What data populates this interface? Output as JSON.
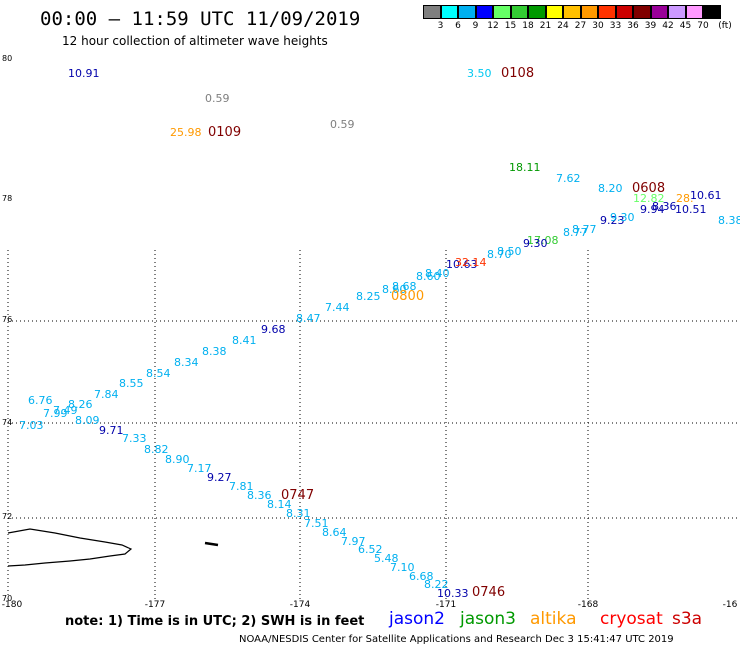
{
  "header": {
    "title": "00:00 – 11:59 UTC 11/09/2019",
    "subtitle": "12 hour collection of altimeter wave heights"
  },
  "legend": {
    "colors": [
      "#7f7f7f",
      "#00ffff",
      "#00b0f0",
      "#0000ff",
      "#66ff66",
      "#33cc33",
      "#009900",
      "#ffff00",
      "#ffc000",
      "#ff9900",
      "#ff3300",
      "#cc0000",
      "#800000",
      "#990099",
      "#cc99ff",
      "#ff99ff",
      "#000000"
    ],
    "labels": [
      "3",
      "6",
      "9",
      "12",
      "15",
      "18",
      "21",
      "24",
      "27",
      "30",
      "33",
      "36",
      "39",
      "42",
      "45",
      "70"
    ],
    "unit": "(ft)"
  },
  "axes": {
    "lat_labels": [
      "80",
      "78",
      "76",
      "74",
      "72",
      "70"
    ],
    "lon_labels": [
      "-180",
      "-177",
      "-174",
      "-171",
      "-168",
      "-16"
    ]
  },
  "values": [
    {
      "t": "10.91",
      "c": "#0000aa"
    },
    {
      "t": "3.50",
      "c": "#00c8f0"
    },
    {
      "t": "0.59",
      "c": "#7f7f7f"
    },
    {
      "t": "25.98",
      "c": "#ff9900"
    },
    {
      "t": "0.59",
      "c": "#7f7f7f"
    },
    {
      "t": "18.11",
      "c": "#009900"
    },
    {
      "t": "7.62",
      "c": "#00b0f0"
    },
    {
      "t": "8.20",
      "c": "#00b0f0"
    },
    {
      "t": "12.82",
      "c": "#66ff66"
    },
    {
      "t": "28.",
      "c": "#ff9900"
    },
    {
      "t": "10.61",
      "c": "#0000aa"
    },
    {
      "t": "9.94",
      "c": "#0000aa"
    },
    {
      "t": "8.36",
      "c": "#0000aa"
    },
    {
      "t": "10.51",
      "c": "#0000aa"
    },
    {
      "t": "8.38",
      "c": "#00b0f0"
    },
    {
      "t": "9.23",
      "c": "#0000aa"
    },
    {
      "t": "9.30",
      "c": "#00b0f0"
    },
    {
      "t": "8.77",
      "c": "#00b0f0"
    },
    {
      "t": "8.77",
      "c": "#00b0f0"
    },
    {
      "t": "17.08",
      "c": "#33cc33"
    },
    {
      "t": "9.30",
      "c": "#0000aa"
    },
    {
      "t": "8.50",
      "c": "#00b0f0"
    },
    {
      "t": "8.70",
      "c": "#00b0f0"
    },
    {
      "t": "10.63",
      "c": "#0000aa"
    },
    {
      "t": "32.14",
      "c": "#ff3300"
    },
    {
      "t": "8.40",
      "c": "#00b0f0"
    },
    {
      "t": "8.60",
      "c": "#00b0f0"
    },
    {
      "t": "8.68",
      "c": "#00b0f0"
    },
    {
      "t": "8.60",
      "c": "#00b0f0"
    },
    {
      "t": "8.25",
      "c": "#00b0f0"
    },
    {
      "t": "7.44",
      "c": "#00b0f0"
    },
    {
      "t": "8.47",
      "c": "#00b0f0"
    },
    {
      "t": "9.68",
      "c": "#0000aa"
    },
    {
      "t": "8.41",
      "c": "#00b0f0"
    },
    {
      "t": "8.38",
      "c": "#00b0f0"
    },
    {
      "t": "8.34",
      "c": "#00b0f0"
    },
    {
      "t": "8.54",
      "c": "#00b0f0"
    },
    {
      "t": "8.55",
      "c": "#00b0f0"
    },
    {
      "t": "7.84",
      "c": "#00b0f0"
    },
    {
      "t": "6.76",
      "c": "#00b0f0"
    },
    {
      "t": "8.26",
      "c": "#00b0f0"
    },
    {
      "t": "7.49",
      "c": "#00b0f0"
    },
    {
      "t": "7.99",
      "c": "#00b0f0"
    },
    {
      "t": "8.09",
      "c": "#00b0f0"
    },
    {
      "t": "7.03",
      "c": "#00b0f0"
    },
    {
      "t": "9.71",
      "c": "#0000aa"
    },
    {
      "t": "7.33",
      "c": "#00b0f0"
    },
    {
      "t": "8.82",
      "c": "#00b0f0"
    },
    {
      "t": "8.90",
      "c": "#00b0f0"
    },
    {
      "t": "7.17",
      "c": "#00b0f0"
    },
    {
      "t": "9.27",
      "c": "#0000aa"
    },
    {
      "t": "7.81",
      "c": "#00b0f0"
    },
    {
      "t": "8.36",
      "c": "#00b0f0"
    },
    {
      "t": "8.14",
      "c": "#00b0f0"
    },
    {
      "t": "8.31",
      "c": "#00b0f0"
    },
    {
      "t": "7.51",
      "c": "#00b0f0"
    },
    {
      "t": "8.64",
      "c": "#00b0f0"
    },
    {
      "t": "7.97",
      "c": "#00b0f0"
    },
    {
      "t": "6.52",
      "c": "#00b0f0"
    },
    {
      "t": "5.48",
      "c": "#00b0f0"
    },
    {
      "t": "7.10",
      "c": "#00b0f0"
    },
    {
      "t": "6.68",
      "c": "#00b0f0"
    },
    {
      "t": "8.22",
      "c": "#00b0f0"
    },
    {
      "t": "10.33",
      "c": "#0000aa"
    }
  ],
  "times": [
    {
      "t": "0108",
      "c": "#800000"
    },
    {
      "t": "0109",
      "c": "#800000"
    },
    {
      "t": "0608",
      "c": "#800000"
    },
    {
      "t": "0800",
      "c": "#ff9900"
    },
    {
      "t": "0747",
      "c": "#800000"
    },
    {
      "t": "0746",
      "c": "#800000"
    }
  ],
  "note": "note: 1) Time is in UTC; 2) SWH is in feet",
  "satellites": [
    {
      "name": "jason2",
      "c": "#0000ff"
    },
    {
      "name": "jason3",
      "c": "#009900"
    },
    {
      "name": "altika",
      "c": "#ff9900"
    },
    {
      "name": "cryosat",
      "c": "#ff0000"
    },
    {
      "name": "s3a",
      "c": "#cc0000"
    }
  ],
  "footer": "NOAA/NESDIS Center for Satellite Applications and Research    Dec  3 15:41:47 UTC 2019"
}
